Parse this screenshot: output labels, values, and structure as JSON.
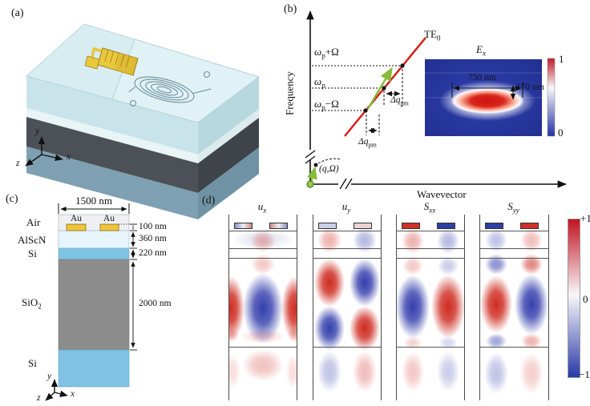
{
  "figure": {
    "panel_labels": {
      "a": "(a)",
      "b": "(b)",
      "c": "(c)",
      "d": "(d)"
    }
  },
  "a": {
    "axis_x": "x",
    "axis_y": "y",
    "axis_z": "z",
    "colors": {
      "chip_top": "#d7edf1",
      "gold": "#e9c83d",
      "dark_layer": "#4b5156",
      "base_layer": "#7fa0b2"
    }
  },
  "b": {
    "y_axis_label": "Frequency",
    "x_axis_label": "Wavevector",
    "te0": {
      "base": "TE",
      "sub": "0"
    },
    "tick_top": {
      "pre": "ω",
      "sub": "p",
      "post": "+Ω"
    },
    "tick_mid": {
      "pre": "ω",
      "sub": "p",
      "post": ""
    },
    "tick_bot": {
      "pre": "ω",
      "sub": "p",
      "post": "−Ω"
    },
    "dq_upper": {
      "pre": "Δq",
      "sub": "pm"
    },
    "dq_lower": {
      "pre": "Δq",
      "sub": "pm"
    },
    "origin_label": "(q,Ω)",
    "line_color": "#d32018",
    "arrow_color": "#85bb3a",
    "inset": {
      "title": {
        "base": "E",
        "sub": "x"
      },
      "width_label": "750 nm",
      "height_label": "170 nm",
      "cbar_max": "1",
      "cbar_min": "0",
      "bg_color": "#2a3aae"
    }
  },
  "c": {
    "width_label": "1500 nm",
    "label_air": "Air",
    "label_alscn": "AlScN",
    "label_si_top": "Si",
    "label_sio2": {
      "base": "SiO",
      "sub": "2"
    },
    "label_si_bottom": "Si",
    "au_left": "Au",
    "au_right": "Au",
    "dim_au": "100 nm",
    "dim_alscn": "360 nm",
    "dim_si": "220 nm",
    "dim_sio2": "2000 nm",
    "axis_x": "x",
    "axis_y": "y",
    "axis_z": "z",
    "colors": {
      "air": "#eef0f4",
      "au": "#edc63b",
      "alscn": "#e7f4fb",
      "si": "#7fc2e4",
      "sio2": "#8c8c8c"
    }
  },
  "d": {
    "colorbar": {
      "max": "+1",
      "mid": "0",
      "min": "−1"
    },
    "field_red": "#cc2015",
    "field_blue": "#2a35a8",
    "panels": [
      {
        "label": {
          "base": "u",
          "sub": "x"
        },
        "electrodes": [
          [
            "#8891cc",
            "#eeeeee",
            "#cc8888"
          ],
          [
            "#cc8888",
            "#eeeeee",
            "#8891cc"
          ]
        ],
        "blobs": [
          [
            42,
            31,
            40,
            13,
            "#9aa4cc",
            0.28
          ],
          [
            42,
            33,
            16,
            14,
            "r",
            0.3
          ],
          [
            42,
            62,
            15,
            13,
            "r",
            0.25
          ],
          [
            2,
            117,
            17,
            40,
            "r",
            0.95
          ],
          [
            42,
            117,
            25,
            44,
            "b",
            0.95
          ],
          [
            82,
            117,
            17,
            40,
            "r",
            0.95
          ],
          [
            42,
            152,
            28,
            9,
            "r",
            0.18
          ],
          [
            2,
            150,
            10,
            10,
            "r",
            0.25
          ],
          [
            82,
            150,
            10,
            10,
            "r",
            0.25
          ],
          [
            42,
            188,
            26,
            20,
            "r",
            0.28
          ],
          [
            4,
            196,
            10,
            22,
            "r",
            0.15
          ],
          [
            80,
            196,
            10,
            22,
            "r",
            0.15
          ]
        ]
      },
      {
        "label": {
          "base": "u",
          "sub": "y"
        },
        "electrodes": [
          [
            "#c9cfe9"
          ],
          [
            "#ecd2d5"
          ]
        ],
        "blobs": [
          [
            20,
            32,
            15,
            16,
            "r",
            0.35
          ],
          [
            64,
            32,
            15,
            16,
            "b",
            0.35
          ],
          [
            20,
            85,
            19,
            30,
            "r",
            0.95
          ],
          [
            64,
            85,
            19,
            30,
            "b",
            0.95
          ],
          [
            20,
            142,
            19,
            28,
            "b",
            0.95
          ],
          [
            64,
            142,
            19,
            28,
            "r",
            0.95
          ],
          [
            20,
            196,
            15,
            26,
            "b",
            0.3
          ],
          [
            64,
            196,
            15,
            26,
            "r",
            0.3
          ]
        ]
      },
      {
        "label": {
          "base": "S",
          "sub": "xx"
        },
        "electrodes": [
          [
            "#cf3128"
          ],
          [
            "#2e3fa3"
          ]
        ],
        "blobs": [
          [
            20,
            33,
            14,
            16,
            "r",
            0.35
          ],
          [
            64,
            33,
            14,
            16,
            "b",
            0.35
          ],
          [
            20,
            64,
            13,
            12,
            "r",
            0.25
          ],
          [
            64,
            64,
            13,
            12,
            "b",
            0.25
          ],
          [
            20,
            115,
            21,
            40,
            "b",
            0.95
          ],
          [
            64,
            115,
            21,
            40,
            "r",
            0.95
          ],
          [
            20,
            160,
            12,
            8,
            "r",
            0.2
          ],
          [
            64,
            160,
            12,
            8,
            "b",
            0.2
          ],
          [
            20,
            196,
            14,
            25,
            "r",
            0.25
          ],
          [
            64,
            196,
            14,
            25,
            "b",
            0.25
          ]
        ]
      },
      {
        "label": {
          "base": "S",
          "sub": "yy"
        },
        "electrodes": [
          [
            "#2e3fa3"
          ],
          [
            "#cf3128"
          ]
        ],
        "blobs": [
          [
            20,
            32,
            14,
            15,
            "b",
            0.3
          ],
          [
            64,
            32,
            14,
            15,
            "r",
            0.3
          ],
          [
            20,
            62,
            14,
            13,
            "b",
            0.55
          ],
          [
            64,
            62,
            14,
            13,
            "r",
            0.55
          ],
          [
            20,
            112,
            20,
            36,
            "r",
            0.95
          ],
          [
            64,
            112,
            21,
            38,
            "b",
            0.95
          ],
          [
            20,
            158,
            13,
            10,
            "b",
            0.45
          ],
          [
            64,
            158,
            13,
            10,
            "r",
            0.35
          ],
          [
            20,
            198,
            15,
            26,
            "b",
            0.3
          ],
          [
            64,
            198,
            15,
            26,
            "r",
            0.22
          ]
        ]
      }
    ]
  }
}
